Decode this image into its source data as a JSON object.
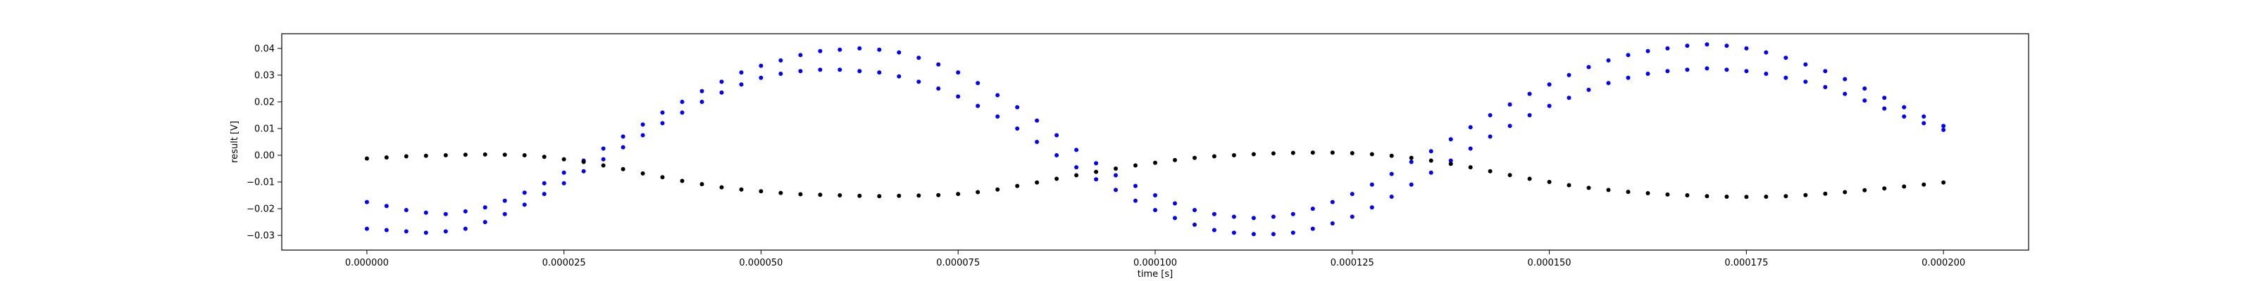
{
  "chart_data": {
    "type": "scatter",
    "xlabel": "time [s]",
    "ylabel": "result [V]",
    "xlim": [
      -1.08e-05,
      0.0002108
    ],
    "ylim": [
      -0.0355,
      0.0455
    ],
    "grid": false,
    "legend": "none",
    "x_ticks": [
      {
        "value": 0.0,
        "label": "0.000000"
      },
      {
        "value": 2.5e-05,
        "label": "0.000025"
      },
      {
        "value": 5e-05,
        "label": "0.000050"
      },
      {
        "value": 7.5e-05,
        "label": "0.000075"
      },
      {
        "value": 0.0001,
        "label": "0.000100"
      },
      {
        "value": 0.000125,
        "label": "0.000125"
      },
      {
        "value": 0.00015,
        "label": "0.000150"
      },
      {
        "value": 0.000175,
        "label": "0.000175"
      },
      {
        "value": 0.0002,
        "label": "0.000200"
      }
    ],
    "y_ticks": [
      {
        "value": -0.03,
        "label": "−0.03"
      },
      {
        "value": -0.02,
        "label": "−0.02"
      },
      {
        "value": -0.01,
        "label": "−0.01"
      },
      {
        "value": 0.0,
        "label": "0.00"
      },
      {
        "value": 0.01,
        "label": "0.01"
      },
      {
        "value": 0.02,
        "label": "0.02"
      },
      {
        "value": 0.03,
        "label": "0.03"
      },
      {
        "value": 0.04,
        "label": "0.04"
      }
    ],
    "series": [
      {
        "color": "#0000ff",
        "marker": "dot",
        "x": [
          0.0,
          2.5e-06,
          5e-06,
          7.5e-06,
          1e-05,
          1.25e-05,
          1.5e-05,
          1.75e-05,
          2e-05,
          2.25e-05,
          2.5e-05,
          2.75e-05,
          3e-05,
          3.25e-05,
          3.5e-05,
          3.75e-05,
          4e-05,
          4.25e-05,
          4.5e-05,
          4.75e-05,
          5e-05,
          5.25e-05,
          5.5e-05,
          5.75e-05,
          6e-05,
          6.25e-05,
          6.5e-05,
          6.75e-05,
          7e-05,
          7.25e-05,
          7.5e-05,
          7.75e-05,
          8e-05,
          8.25e-05,
          8.5e-05,
          8.75e-05,
          9e-05,
          9.25e-05,
          9.5e-05,
          9.75e-05,
          0.0001,
          0.0001025,
          0.000105,
          0.0001075,
          0.00011,
          0.0001125,
          0.000115,
          0.0001175,
          0.00012,
          0.0001225,
          0.000125,
          0.0001275,
          0.00013,
          0.0001325,
          0.000135,
          0.0001375,
          0.00014,
          0.0001425,
          0.000145,
          0.0001475,
          0.00015,
          0.0001525,
          0.000155,
          0.0001575,
          0.00016,
          0.0001625,
          0.000165,
          0.0001675,
          0.00017,
          0.0001725,
          0.000175,
          0.0001775,
          0.00018,
          0.0001825,
          0.000185,
          0.0001875,
          0.00019,
          0.0001925,
          0.000195,
          0.0001975,
          0.0002
        ],
        "y": [
          -0.0175,
          -0.019,
          -0.0205,
          -0.0215,
          -0.022,
          -0.021,
          -0.0195,
          -0.017,
          -0.014,
          -0.0105,
          -0.0065,
          -0.002,
          0.0025,
          0.007,
          0.0115,
          0.016,
          0.02,
          0.024,
          0.0275,
          0.031,
          0.0335,
          0.0355,
          0.0375,
          0.039,
          0.0395,
          0.04,
          0.0395,
          0.0385,
          0.0365,
          0.034,
          0.031,
          0.027,
          0.0225,
          0.018,
          0.013,
          0.0075,
          0.002,
          -0.003,
          -0.0075,
          -0.0115,
          -0.015,
          -0.018,
          -0.0205,
          -0.022,
          -0.023,
          -0.0235,
          -0.023,
          -0.022,
          -0.02,
          -0.0175,
          -0.0145,
          -0.011,
          -0.007,
          -0.0025,
          0.0015,
          0.006,
          0.0105,
          0.015,
          0.019,
          0.023,
          0.0265,
          0.03,
          0.033,
          0.0355,
          0.0375,
          0.039,
          0.04,
          0.041,
          0.0415,
          0.041,
          0.04,
          0.0385,
          0.0365,
          0.034,
          0.0315,
          0.0285,
          0.025,
          0.0215,
          0.018,
          0.0145,
          0.011
        ]
      },
      {
        "color": "#0000ff",
        "marker": "dot",
        "x": [
          0.0,
          2.5e-06,
          5e-06,
          7.5e-06,
          1e-05,
          1.25e-05,
          1.5e-05,
          1.75e-05,
          2e-05,
          2.25e-05,
          2.5e-05,
          2.75e-05,
          3e-05,
          3.25e-05,
          3.5e-05,
          3.75e-05,
          4e-05,
          4.25e-05,
          4.5e-05,
          4.75e-05,
          5e-05,
          5.25e-05,
          5.5e-05,
          5.75e-05,
          6e-05,
          6.25e-05,
          6.5e-05,
          6.75e-05,
          7e-05,
          7.25e-05,
          7.5e-05,
          7.75e-05,
          8e-05,
          8.25e-05,
          8.5e-05,
          8.75e-05,
          9e-05,
          9.25e-05,
          9.5e-05,
          9.75e-05,
          0.0001,
          0.0001025,
          0.000105,
          0.0001075,
          0.00011,
          0.0001125,
          0.000115,
          0.0001175,
          0.00012,
          0.0001225,
          0.000125,
          0.0001275,
          0.00013,
          0.0001325,
          0.000135,
          0.0001375,
          0.00014,
          0.0001425,
          0.000145,
          0.0001475,
          0.00015,
          0.0001525,
          0.000155,
          0.0001575,
          0.00016,
          0.0001625,
          0.000165,
          0.0001675,
          0.00017,
          0.0001725,
          0.000175,
          0.0001775,
          0.00018,
          0.0001825,
          0.000185,
          0.0001875,
          0.00019,
          0.0001925,
          0.000195,
          0.0001975,
          0.0002
        ],
        "y": [
          -0.0275,
          -0.028,
          -0.0285,
          -0.029,
          -0.0285,
          -0.0275,
          -0.025,
          -0.022,
          -0.0185,
          -0.0145,
          -0.0105,
          -0.006,
          -0.0015,
          0.003,
          0.0075,
          0.012,
          0.016,
          0.02,
          0.0235,
          0.0265,
          0.029,
          0.0305,
          0.0315,
          0.032,
          0.032,
          0.0315,
          0.031,
          0.0295,
          0.0275,
          0.025,
          0.022,
          0.0185,
          0.0145,
          0.01,
          0.005,
          0.0,
          -0.0045,
          -0.009,
          -0.013,
          -0.017,
          -0.0205,
          -0.0235,
          -0.026,
          -0.028,
          -0.029,
          -0.0295,
          -0.0295,
          -0.029,
          -0.0275,
          -0.0255,
          -0.023,
          -0.0195,
          -0.0155,
          -0.011,
          -0.0065,
          -0.002,
          0.0025,
          0.007,
          0.011,
          0.015,
          0.0185,
          0.0215,
          0.0245,
          0.027,
          0.029,
          0.0305,
          0.0315,
          0.032,
          0.0325,
          0.032,
          0.0315,
          0.0305,
          0.029,
          0.0275,
          0.0255,
          0.023,
          0.0205,
          0.0175,
          0.0145,
          0.012,
          0.0095
        ]
      },
      {
        "color": "#000000",
        "marker": "dot",
        "x": [
          0.0,
          2.5e-06,
          5e-06,
          7.5e-06,
          1e-05,
          1.25e-05,
          1.5e-05,
          1.75e-05,
          2e-05,
          2.25e-05,
          2.5e-05,
          2.75e-05,
          3e-05,
          3.25e-05,
          3.5e-05,
          3.75e-05,
          4e-05,
          4.25e-05,
          4.5e-05,
          4.75e-05,
          5e-05,
          5.25e-05,
          5.5e-05,
          5.75e-05,
          6e-05,
          6.25e-05,
          6.5e-05,
          6.75e-05,
          7e-05,
          7.25e-05,
          7.5e-05,
          7.75e-05,
          8e-05,
          8.25e-05,
          8.5e-05,
          8.75e-05,
          9e-05,
          9.25e-05,
          9.5e-05,
          9.75e-05,
          0.0001,
          0.0001025,
          0.000105,
          0.0001075,
          0.00011,
          0.0001125,
          0.000115,
          0.0001175,
          0.00012,
          0.0001225,
          0.000125,
          0.0001275,
          0.00013,
          0.0001325,
          0.000135,
          0.0001375,
          0.00014,
          0.0001425,
          0.000145,
          0.0001475,
          0.00015,
          0.0001525,
          0.000155,
          0.0001575,
          0.00016,
          0.0001625,
          0.000165,
          0.0001675,
          0.00017,
          0.0001725,
          0.000175,
          0.0001775,
          0.00018,
          0.0001825,
          0.000185,
          0.0001875,
          0.00019,
          0.0001925,
          0.000195,
          0.0001975,
          0.0002
        ],
        "y": [
          -0.0012,
          -0.0008,
          -0.0004,
          -0.0002,
          0.0,
          0.0002,
          0.0003,
          0.0002,
          0.0,
          -0.0006,
          -0.0015,
          -0.0025,
          -0.0038,
          -0.0052,
          -0.0068,
          -0.0082,
          -0.0096,
          -0.0108,
          -0.012,
          -0.0128,
          -0.0135,
          -0.0141,
          -0.0146,
          -0.0148,
          -0.015,
          -0.0152,
          -0.0153,
          -0.0152,
          -0.0151,
          -0.0149,
          -0.0145,
          -0.0138,
          -0.0128,
          -0.0115,
          -0.0102,
          -0.0088,
          -0.0075,
          -0.0062,
          -0.005,
          -0.0038,
          -0.0028,
          -0.0018,
          -0.001,
          -0.0004,
          0.0,
          0.0004,
          0.0007,
          0.0009,
          0.001,
          0.001,
          0.0008,
          0.0004,
          -0.0002,
          -0.001,
          -0.002,
          -0.0032,
          -0.0045,
          -0.006,
          -0.0074,
          -0.0088,
          -0.01,
          -0.0112,
          -0.0122,
          -0.013,
          -0.0137,
          -0.0142,
          -0.0147,
          -0.015,
          -0.0153,
          -0.0155,
          -0.0156,
          -0.0155,
          -0.0153,
          -0.0149,
          -0.0144,
          -0.0138,
          -0.0131,
          -0.0124,
          -0.0117,
          -0.011,
          -0.0102
        ]
      }
    ]
  }
}
